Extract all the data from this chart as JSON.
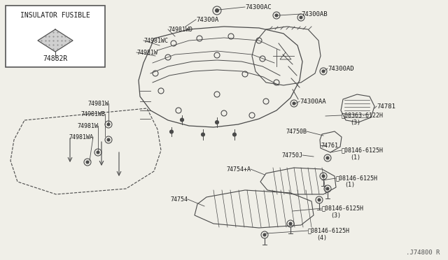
{
  "bg_color": "#f0efe8",
  "line_color": "#4a4a4a",
  "text_color": "#1a1a1a",
  "ref_code": ".J74800 R",
  "inset_label": "INSULATOR FUSIBLE",
  "inset_part": "74882R",
  "fig_width": 6.4,
  "fig_height": 3.72,
  "dpi": 100
}
